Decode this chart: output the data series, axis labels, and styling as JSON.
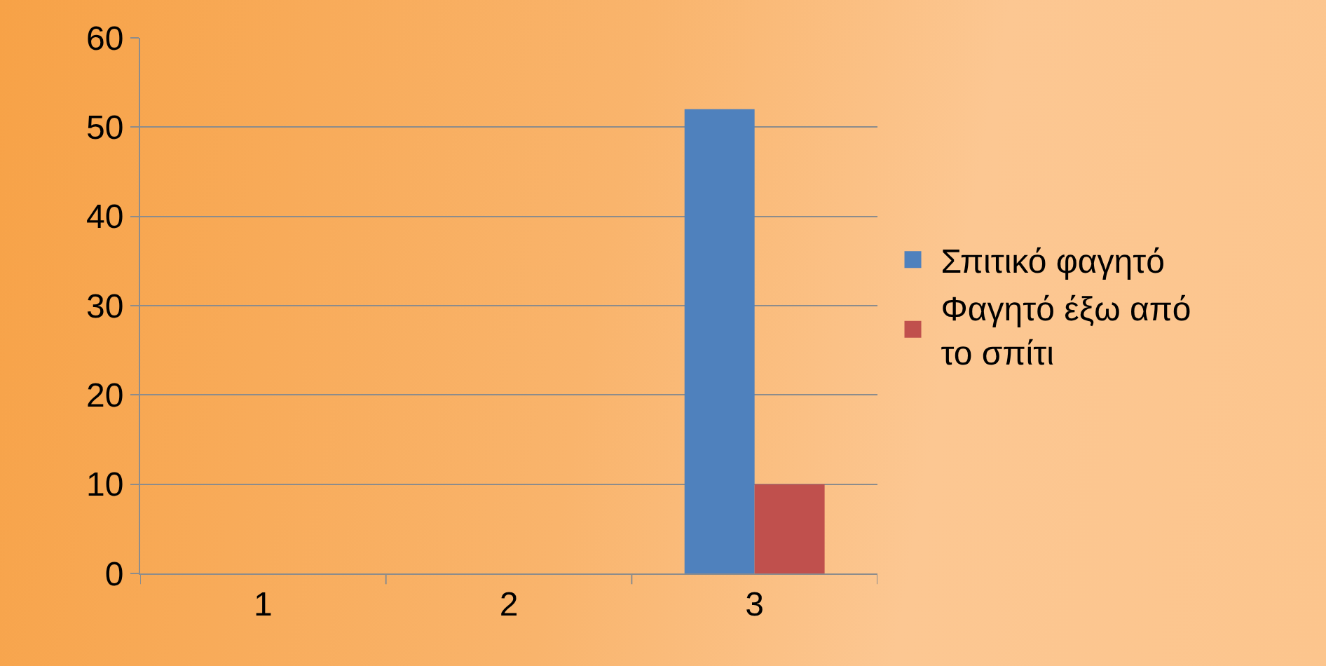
{
  "chart_data": {
    "type": "bar",
    "categories": [
      "1",
      "2",
      "3"
    ],
    "series": [
      {
        "name": "Σπιτικό φαγητό",
        "color": "#4f81bd",
        "values": [
          null,
          null,
          52
        ]
      },
      {
        "name": "Φαγητό έξω από το σπίτι",
        "color": "#c0504d",
        "values": [
          null,
          null,
          10
        ]
      }
    ],
    "ylim": [
      0,
      60
    ],
    "yticks": [
      0,
      10,
      20,
      30,
      40,
      50,
      60
    ],
    "grid": "y",
    "legend": "right"
  }
}
